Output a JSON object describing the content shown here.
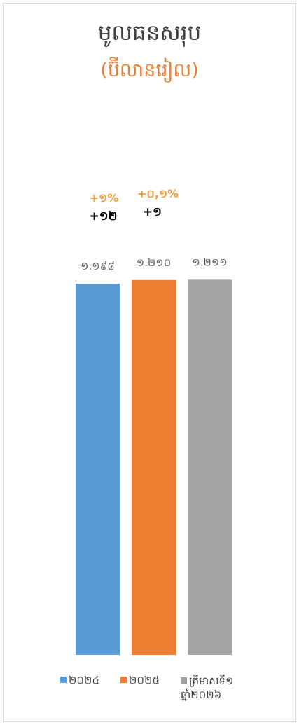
{
  "chart_data": {
    "type": "bar",
    "title": "មូលធនសរុប",
    "subtitle": "(ប៊ីលានរៀល)",
    "categories": [
      "២០២៤",
      "២០២៥",
      "ត្រីមាសទី១ ឆ្នាំ២០២៦"
    ],
    "values": [
      1198,
      1210,
      1211
    ],
    "value_labels": [
      "១.១៩៨",
      "១.២១០",
      "១.២១១"
    ],
    "colors": [
      "#5b9bd5",
      "#ed7d31",
      "#a5a5a5"
    ],
    "ylim": [
      0,
      1300
    ],
    "annotations": [
      {
        "category_index": 0,
        "percent": "+១%",
        "change": "+១២"
      },
      {
        "category_index": 1,
        "percent": "+០,១%",
        "change": "+១"
      }
    ],
    "legend_placement": "bottom",
    "grid": false
  }
}
